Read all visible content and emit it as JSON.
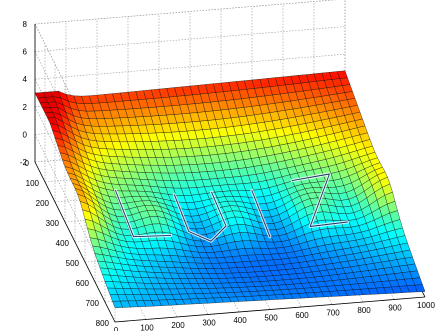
{
  "chart_data": {
    "type": "surface",
    "title": "",
    "xlabel": "",
    "ylabel": "",
    "zlabel": "",
    "colormap": "jet",
    "grid": true,
    "xlim": [
      0,
      1000
    ],
    "ylim": [
      0,
      800
    ],
    "zlim": [
      -2,
      8
    ],
    "x_ticks": [
      "0",
      "100",
      "200",
      "300",
      "400",
      "500",
      "600",
      "700",
      "800",
      "900",
      "1000"
    ],
    "y_ticks": [
      "0",
      "100",
      "200",
      "300",
      "400",
      "500",
      "600",
      "700",
      "800"
    ],
    "z_ticks": [
      "-2",
      "0",
      "2",
      "4",
      "6",
      "8"
    ],
    "annotation": "LUIZ",
    "corner_heights": {
      "x0_y0": 2.4,
      "x1000_y0": 2.8,
      "x0_y800": -1.0,
      "x1000_y800": -1.6
    },
    "surface_range": [
      -2,
      3
    ]
  }
}
